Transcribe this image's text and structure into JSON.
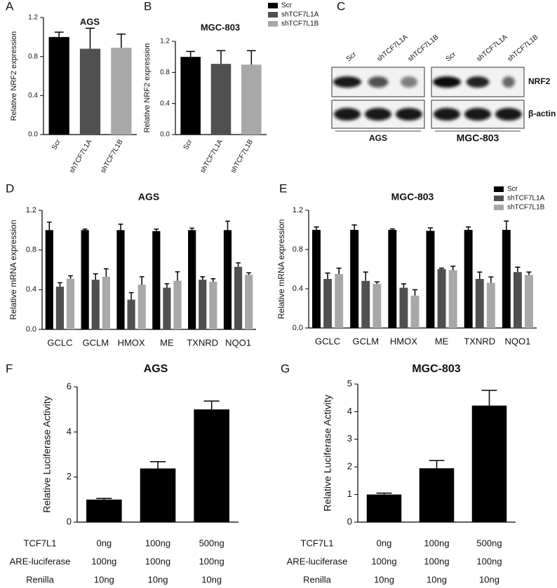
{
  "chart_data": [
    {
      "type": "bar",
      "panel": "A",
      "title": "AGS",
      "ylabel": "Relative NRF2 expression",
      "categories": [
        "Scr",
        "shTCF7L1A",
        "shTCF7L1B"
      ],
      "values": [
        1.0,
        0.88,
        0.89
      ],
      "errors": [
        0.05,
        0.21,
        0.14
      ],
      "colors": [
        "#000000",
        "#505050",
        "#a8a8a8"
      ],
      "ylim": [
        0,
        1.2
      ],
      "yticks": [
        {
          "value": 0,
          "label": "0.0"
        },
        0.4,
        0.8,
        1.2
      ]
    },
    {
      "type": "bar",
      "panel": "B",
      "title": "MGC-803",
      "ylabel": "Relative NRF2 expression",
      "categories": [
        "Scr",
        "shTCF7L1A",
        "shTCF7L1B"
      ],
      "values": [
        1.0,
        0.91,
        0.9
      ],
      "errors": [
        0.07,
        0.17,
        0.18
      ],
      "colors": [
        "#000000",
        "#505050",
        "#a8a8a8"
      ],
      "legend": "right",
      "ylim": [
        0,
        1.2
      ],
      "yticks": [
        {
          "value": 0,
          "label": "0.0"
        },
        0.4,
        0.8,
        1.2
      ]
    },
    {
      "type": "grouped_bar",
      "panel": "D",
      "title": "AGS",
      "ylabel": "Relative mRNA expression",
      "categories": [
        "GCLC",
        "GCLM",
        "HMOX",
        "ME",
        "TXNRD",
        "NQO1"
      ],
      "series": [
        {
          "name": "Scr",
          "color": "#000000",
          "values": [
            1.0,
            1.0,
            1.0,
            0.99,
            1.0,
            1.0
          ],
          "errors": [
            0.08,
            0.01,
            0.06,
            0.02,
            0.02,
            0.09
          ]
        },
        {
          "name": "shTCF7L1A",
          "color": "#505050",
          "values": [
            0.43,
            0.5,
            0.3,
            0.42,
            0.5,
            0.63
          ],
          "errors": [
            0.04,
            0.06,
            0.07,
            0.04,
            0.03,
            0.04
          ]
        },
        {
          "name": "shTCF7L1B",
          "color": "#a8a8a8",
          "values": [
            0.51,
            0.53,
            0.45,
            0.49,
            0.48,
            0.55
          ],
          "errors": [
            0.03,
            0.08,
            0.08,
            0.09,
            0.03,
            0.02
          ]
        }
      ],
      "ylim": [
        0,
        1.2
      ],
      "yticks": [
        {
          "value": 0,
          "label": "0.0"
        },
        0.4,
        0.8,
        1.2
      ]
    },
    {
      "type": "grouped_bar",
      "panel": "E",
      "title": "MGC-803",
      "ylabel": "Relative mRNA expression",
      "categories": [
        "GCLC",
        "GCLM",
        "HMOX",
        "ME",
        "TXNRD",
        "NQO1"
      ],
      "series": [
        {
          "name": "Scr",
          "color": "#000000",
          "values": [
            1.0,
            1.0,
            1.0,
            0.99,
            1.0,
            1.0
          ],
          "errors": [
            0.03,
            0.05,
            0.01,
            0.03,
            0.03,
            0.09
          ]
        },
        {
          "name": "shTCF7L1A",
          "color": "#505050",
          "values": [
            0.5,
            0.48,
            0.41,
            0.6,
            0.5,
            0.57
          ],
          "errors": [
            0.06,
            0.09,
            0.04,
            0.01,
            0.07,
            0.05
          ]
        },
        {
          "name": "shTCF7L1B",
          "color": "#a8a8a8",
          "values": [
            0.55,
            0.45,
            0.33,
            0.59,
            0.46,
            0.54
          ],
          "errors": [
            0.06,
            0.02,
            0.06,
            0.04,
            0.06,
            0.03
          ]
        }
      ],
      "legend": "top-right",
      "ylim": [
        0,
        1.2
      ],
      "yticks": [
        {
          "value": 0,
          "label": "0.0"
        },
        0.4,
        0.8,
        1.2
      ]
    },
    {
      "type": "bar",
      "panel": "F",
      "title": "AGS",
      "ylabel": "Relative Luciferase Activity",
      "values": [
        1.0,
        2.38,
        5.0
      ],
      "errors": [
        0.05,
        0.3,
        0.37
      ],
      "color": "#000000",
      "ylim": [
        0,
        6
      ],
      "yticks": [
        0,
        2,
        4,
        6
      ],
      "table": [
        {
          "label": "TCF7L1",
          "cells": [
            "0ng",
            "100ng",
            "500ng"
          ]
        },
        {
          "label": "ARE-luciferase",
          "cells": [
            "100ng",
            "100ng",
            "100ng"
          ]
        },
        {
          "label": "Renilla",
          "cells": [
            "10ng",
            "10ng",
            "10ng"
          ]
        }
      ]
    },
    {
      "type": "bar",
      "panel": "G",
      "title": "MGC-803",
      "ylabel": "Relative Luciferase Activity",
      "values": [
        1.0,
        1.95,
        4.22
      ],
      "errors": [
        0.05,
        0.28,
        0.55
      ],
      "color": "#000000",
      "ylim": [
        0,
        5
      ],
      "yticks": [
        0,
        1,
        2,
        3,
        4,
        5
      ],
      "table": [
        {
          "label": "TCF7L1",
          "cells": [
            "0ng",
            "100ng",
            "500ng"
          ]
        },
        {
          "label": "ARE-luciferase",
          "cells": [
            "100ng",
            "100ng",
            "100ng"
          ]
        },
        {
          "label": "Renilla",
          "cells": [
            "10ng",
            "10ng",
            "10ng"
          ]
        }
      ]
    }
  ],
  "western_blot": {
    "panel": "C",
    "lanes": [
      [
        "Scr",
        "shTCF7L1A",
        "shTCF7L1B"
      ],
      [
        "Scr",
        "shTCF7L1A",
        "shTCF7L1B"
      ]
    ],
    "proteins": [
      "NRF2",
      "β-actin"
    ],
    "cell_lines": [
      "AGS",
      "MGC-803"
    ]
  }
}
